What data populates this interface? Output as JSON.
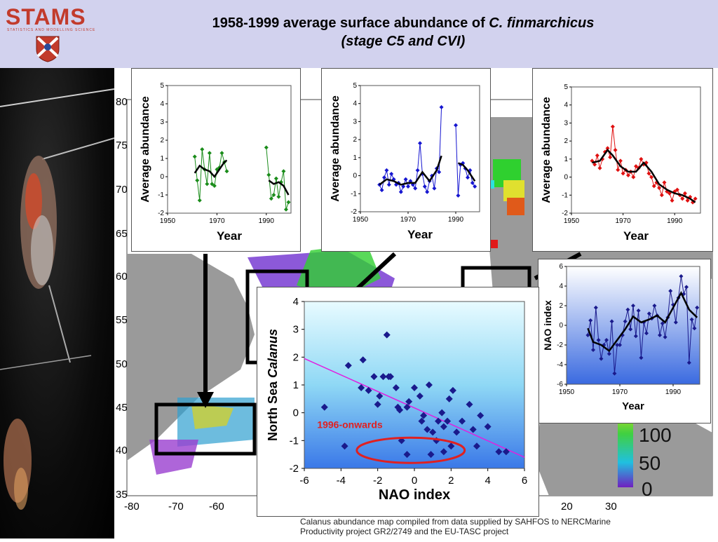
{
  "header": {
    "logo_text": "STAMS",
    "logo_sub": "STATISTICS AND MODELLING SCIENCE",
    "title_line1_plain": "1958-1999 average surface abundance of ",
    "title_line1_italic": "C. finmarchicus",
    "title_line2": "(stage C5 and CVI)"
  },
  "map": {
    "lat_labels": [
      "80",
      "75",
      "70",
      "65",
      "60",
      "55",
      "50",
      "45",
      "40",
      "35"
    ],
    "lon_labels": [
      "-80",
      "-70",
      "-60",
      "20",
      "30"
    ],
    "colorbar_labels": [
      "100",
      "50",
      "0"
    ]
  },
  "source_text": "Calanus abundance map compiled from data supplied by SAHFOS to NERCMarine Productivity project GR2/2749 and the EU-TASC project",
  "colors": {
    "green": "#1a8c1a",
    "blue": "#1515d0",
    "red": "#e01010",
    "navy": "#1a1a8c",
    "magenta": "#e020e0",
    "ellipse": "#e02020"
  },
  "chart_data": [
    {
      "type": "line",
      "name": "west-atlantic",
      "ylabel": "Average abundance",
      "xlabel": "Year",
      "xlim": [
        1950,
        2000
      ],
      "ylim": [
        -2,
        5
      ],
      "xticks": [
        1950,
        1970,
        1990
      ],
      "yticks": [
        -2,
        -1,
        0,
        1,
        2,
        3,
        4,
        5
      ],
      "series": [
        {
          "x": [
            1961,
            1962,
            1963,
            1964,
            1965,
            1966,
            1967,
            1968,
            1969,
            1970,
            1971,
            1972,
            1973,
            1974
          ],
          "y": [
            1.1,
            -0.2,
            -1.3,
            1.5,
            0.4,
            -0.4,
            1.3,
            -0.4,
            -0.5,
            0.4,
            0.5,
            1.3,
            0.8,
            0.3
          ]
        },
        {
          "x": [
            1990,
            1991,
            1992,
            1993,
            1994,
            1995,
            1996,
            1997,
            1998,
            1999
          ],
          "y": [
            1.6,
            0.1,
            -1.2,
            -1.0,
            -0.1,
            -1.1,
            -0.3,
            0.3,
            -1.8,
            -1.4
          ]
        }
      ],
      "smooth": [
        {
          "x": [
            1961,
            1963,
            1965,
            1967,
            1969,
            1971,
            1973,
            1974
          ],
          "y": [
            0.2,
            0.6,
            0.4,
            0.3,
            0.0,
            0.4,
            0.8,
            0.9
          ]
        },
        {
          "x": [
            1991,
            1993,
            1995,
            1997,
            1999
          ],
          "y": [
            -0.2,
            -0.4,
            -0.3,
            -0.5,
            -1.0
          ]
        }
      ]
    },
    {
      "type": "line",
      "name": "central-atlantic",
      "ylabel": "Average abundance",
      "xlabel": "Year",
      "xlim": [
        1950,
        2000
      ],
      "ylim": [
        -2,
        5
      ],
      "xticks": [
        1950,
        1970,
        1990
      ],
      "yticks": [
        -2,
        -1,
        0,
        1,
        2,
        3,
        4,
        5
      ],
      "series": [
        {
          "x": [
            1958,
            1959,
            1960,
            1961,
            1962,
            1963,
            1964,
            1965,
            1966,
            1967,
            1968,
            1969,
            1970,
            1971,
            1972,
            1973,
            1974,
            1975,
            1976,
            1977,
            1978,
            1979,
            1980,
            1981,
            1982,
            1983,
            1984
          ],
          "y": [
            -0.5,
            -0.8,
            -0.1,
            0.3,
            -0.5,
            0.1,
            -0.2,
            -0.5,
            -0.4,
            -0.9,
            -0.6,
            -0.2,
            -0.6,
            -0.3,
            -0.5,
            -0.7,
            0.3,
            1.8,
            0.1,
            -0.6,
            -0.9,
            -0.3,
            0.0,
            -0.7,
            0.4,
            0.2,
            3.8
          ]
        },
        {
          "x": [
            1990,
            1991,
            1992,
            1993,
            1994,
            1995,
            1996,
            1997,
            1998
          ],
          "y": [
            2.8,
            -1.1,
            0.6,
            0.7,
            0.4,
            -0.1,
            0.3,
            -0.4,
            -0.6
          ]
        }
      ],
      "smooth": [
        {
          "x": [
            1958,
            1961,
            1964,
            1967,
            1970,
            1973,
            1976,
            1979,
            1982,
            1984
          ],
          "y": [
            -0.5,
            -0.2,
            -0.3,
            -0.5,
            -0.4,
            -0.4,
            0.2,
            -0.3,
            0.3,
            1.1
          ]
        },
        {
          "x": [
            1991,
            1993,
            1995,
            1997,
            1998
          ],
          "y": [
            0.7,
            0.6,
            0.3,
            -0.1,
            -0.3
          ]
        }
      ]
    },
    {
      "type": "line",
      "name": "north-sea",
      "ylabel": "Average abundance",
      "xlabel": "Year",
      "xlim": [
        1950,
        2000
      ],
      "ylim": [
        -2,
        5
      ],
      "xticks": [
        1950,
        1970,
        1990
      ],
      "yticks": [
        -2,
        -1,
        0,
        1,
        2,
        3,
        4,
        5
      ],
      "series": [
        {
          "x": [
            1958,
            1959,
            1960,
            1961,
            1962,
            1963,
            1964,
            1965,
            1966,
            1967,
            1968,
            1969,
            1970,
            1971,
            1972,
            1973,
            1974,
            1975,
            1976,
            1977,
            1978,
            1979,
            1980,
            1981,
            1982,
            1983,
            1984,
            1985,
            1986,
            1987,
            1988,
            1989,
            1990,
            1991,
            1992,
            1993,
            1994,
            1995,
            1996,
            1997,
            1998
          ],
          "y": [
            0.9,
            0.7,
            1.2,
            0.5,
            1.0,
            1.4,
            1.6,
            1.1,
            2.8,
            1.5,
            0.4,
            0.9,
            0.2,
            0.4,
            0.1,
            0.3,
            0.0,
            0.6,
            0.5,
            1.0,
            0.7,
            0.8,
            0.2,
            0.0,
            -0.5,
            -0.3,
            -0.6,
            -1.0,
            -0.3,
            -0.8,
            -0.9,
            -1.3,
            -0.8,
            -0.7,
            -1.0,
            -1.2,
            -0.9,
            -1.3,
            -1.1,
            -1.4,
            -1.2
          ]
        }
      ],
      "smooth": [
        {
          "x": [
            1958,
            1961,
            1964,
            1966,
            1969,
            1972,
            1975,
            1978,
            1981,
            1984,
            1987,
            1990,
            1993,
            1996,
            1998
          ],
          "y": [
            0.8,
            0.9,
            1.5,
            1.2,
            0.6,
            0.3,
            0.3,
            0.8,
            0.3,
            -0.4,
            -0.7,
            -0.9,
            -1.0,
            -1.2,
            -1.4
          ]
        }
      ]
    },
    {
      "type": "line",
      "name": "nao-index",
      "ylabel": "NAO index",
      "xlabel": "Year",
      "xlim": [
        1950,
        2000
      ],
      "ylim": [
        -6,
        6
      ],
      "xticks": [
        1950,
        1970,
        1990
      ],
      "yticks": [
        -6,
        -4,
        -2,
        0,
        2,
        4,
        6
      ],
      "series": [
        {
          "x": [
            1958,
            1959,
            1960,
            1961,
            1962,
            1963,
            1964,
            1965,
            1966,
            1967,
            1968,
            1969,
            1970,
            1971,
            1972,
            1973,
            1974,
            1975,
            1976,
            1977,
            1978,
            1979,
            1980,
            1981,
            1982,
            1983,
            1984,
            1985,
            1986,
            1987,
            1988,
            1989,
            1990,
            1991,
            1992,
            1993,
            1994,
            1995,
            1996,
            1997,
            1998,
            1999
          ],
          "y": [
            -1.0,
            0.5,
            -2.5,
            1.8,
            -1.5,
            -3.4,
            -2.0,
            -1.5,
            -2.9,
            0.4,
            -4.9,
            -2.0,
            -2.0,
            -1.0,
            0.4,
            1.6,
            -0.4,
            2.0,
            -1.1,
            1.5,
            -3.3,
            0.3,
            -0.8,
            1.2,
            0.7,
            2.0,
            1.0,
            -1.0,
            0.2,
            -1.2,
            0.8,
            3.5,
            2.1,
            0.3,
            2.8,
            5.0,
            3.2,
            3.9,
            -3.8,
            0.6,
            -0.3,
            1.8
          ]
        }
      ],
      "smooth": [
        {
          "x": [
            1958,
            1960,
            1963,
            1966,
            1969,
            1972,
            1975,
            1978,
            1981,
            1984,
            1987,
            1990,
            1993,
            1996,
            1999
          ],
          "y": [
            -0.3,
            -1.7,
            -2.0,
            -2.6,
            -1.5,
            -0.4,
            0.9,
            0.3,
            0.6,
            1.0,
            0.3,
            1.8,
            3.3,
            1.6,
            0.8
          ]
        }
      ]
    },
    {
      "type": "scatter",
      "name": "calanus-vs-nao",
      "xlabel": "NAO index",
      "ylabel_plain": "North Sea ",
      "ylabel_italic": "Calanus",
      "xlim": [
        -6,
        6
      ],
      "ylim": [
        -2,
        4
      ],
      "xticks": [
        -6,
        -4,
        -2,
        0,
        2,
        4,
        6
      ],
      "yticks": [
        -2,
        -1,
        0,
        1,
        2,
        3,
        4
      ],
      "points": [
        [
          -4.9,
          0.2
        ],
        [
          -3.8,
          -1.2
        ],
        [
          -3.6,
          1.7
        ],
        [
          -2.8,
          1.9
        ],
        [
          -2.9,
          0.9
        ],
        [
          -2.5,
          0.8
        ],
        [
          -2.2,
          1.3
        ],
        [
          -2.0,
          0.3
        ],
        [
          -1.9,
          0.6
        ],
        [
          -1.7,
          1.3
        ],
        [
          -1.5,
          2.8
        ],
        [
          -1.4,
          1.3
        ],
        [
          -1.3,
          1.3
        ],
        [
          -1.0,
          0.9
        ],
        [
          -0.9,
          0.2
        ],
        [
          -0.7,
          -1.0
        ],
        [
          -0.8,
          0.1
        ],
        [
          -0.4,
          0.2
        ],
        [
          -0.3,
          0.4
        ],
        [
          0.0,
          0.9
        ],
        [
          0.3,
          0.6
        ],
        [
          0.4,
          -0.3
        ],
        [
          0.5,
          -0.1
        ],
        [
          0.7,
          -0.6
        ],
        [
          0.8,
          1.0
        ],
        [
          0.9,
          -1.5
        ],
        [
          1.0,
          -0.7
        ],
        [
          1.2,
          -1.0
        ],
        [
          1.3,
          -0.3
        ],
        [
          1.5,
          0.0
        ],
        [
          1.6,
          -0.5
        ],
        [
          1.8,
          -0.3
        ],
        [
          1.9,
          0.5
        ],
        [
          2.0,
          -1.2
        ],
        [
          2.1,
          0.8
        ],
        [
          2.3,
          -0.7
        ],
        [
          2.6,
          -0.3
        ],
        [
          3.0,
          0.3
        ],
        [
          3.2,
          -0.6
        ],
        [
          3.4,
          -1.2
        ],
        [
          3.6,
          -0.1
        ],
        [
          4.0,
          -0.5
        ],
        [
          4.6,
          -1.4
        ],
        [
          5.0,
          -1.4
        ],
        [
          -0.4,
          -1.5
        ],
        [
          1.6,
          -1.4
        ]
      ],
      "trend_line": {
        "x": [
          -6,
          6
        ],
        "y": [
          1.95,
          -1.6
        ]
      },
      "annotation": "1996-onwards"
    }
  ]
}
